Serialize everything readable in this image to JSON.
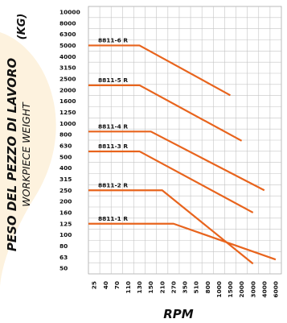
{
  "chart_data": {
    "type": "line",
    "ylabel": "PESO DEL PEZZO DI LAVORO",
    "ylabel_sub": "WORKPIECE WEIGHT",
    "yunit": "(KG)",
    "xlabel": "RPM",
    "yticks": [
      "10000",
      "8000",
      "6300",
      "5000",
      "4000",
      "3150",
      "2500",
      "2000",
      "1600",
      "1250",
      "1000",
      "800",
      "630",
      "500",
      "400",
      "315",
      "250",
      "200",
      "160",
      "125",
      "100",
      "80",
      "63",
      "50"
    ],
    "xticks": [
      "25",
      "40",
      "70",
      "110",
      "130",
      "150",
      "210",
      "270",
      "350",
      "510",
      "800",
      "1000",
      "1500",
      "2000",
      "3000",
      "4000",
      "6000"
    ],
    "grid": true,
    "line_color": "#e8641d",
    "series": [
      {
        "name": "8811-6 R",
        "points": [
          [
            0,
            5000
          ],
          [
            130,
            5000
          ],
          [
            1500,
            1800
          ]
        ]
      },
      {
        "name": "8811-5 R",
        "points": [
          [
            0,
            2200
          ],
          [
            130,
            2200
          ],
          [
            2000,
            700
          ]
        ]
      },
      {
        "name": "8811-4 R",
        "points": [
          [
            0,
            850
          ],
          [
            150,
            850
          ],
          [
            4000,
            250
          ]
        ]
      },
      {
        "name": "8811-3 R",
        "points": [
          [
            0,
            560
          ],
          [
            130,
            560
          ],
          [
            3000,
            160
          ]
        ]
      },
      {
        "name": "8811-2 R",
        "points": [
          [
            0,
            250
          ],
          [
            210,
            250
          ],
          [
            3000,
            55
          ]
        ]
      },
      {
        "name": "8811-1 R",
        "points": [
          [
            0,
            125
          ],
          [
            270,
            125
          ],
          [
            6000,
            60
          ]
        ]
      }
    ]
  }
}
